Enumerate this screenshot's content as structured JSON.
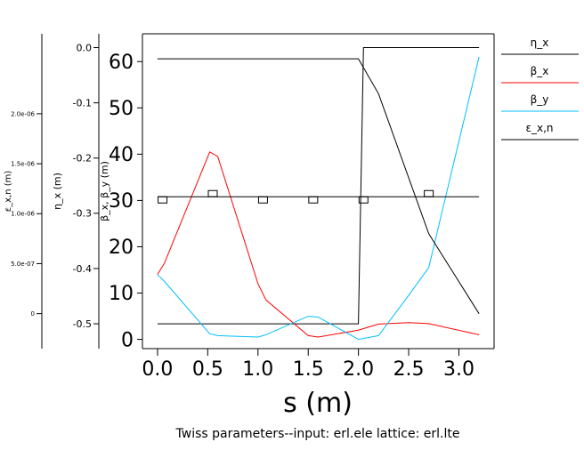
{
  "chart_data": {
    "type": "line",
    "title": "",
    "caption": "Twiss parameters--input: erl.ele  lattice: erl.lte",
    "xlabel": "s  (m)",
    "xlim": [
      -0.15,
      3.35
    ],
    "xticks": [
      "0.0",
      "0.5",
      "1.0",
      "1.5",
      "2.0",
      "2.5",
      "3.0"
    ],
    "xtick_values": [
      0.0,
      0.5,
      1.0,
      1.5,
      2.0,
      2.5,
      3.0
    ],
    "axes": {
      "beta": {
        "label": "β_x, β_y (m)",
        "ylim": [
          -2,
          66
        ],
        "ticks": [
          "0",
          "10",
          "20",
          "30",
          "40",
          "50",
          "60"
        ],
        "tick_values": [
          0,
          10,
          20,
          30,
          40,
          50,
          60
        ]
      },
      "eta": {
        "label": "η_x (m)",
        "ylim": [
          -0.545,
          0.025
        ],
        "ticks": [
          "0.0",
          "-0.1",
          "-0.2",
          "-0.3",
          "-0.4",
          "-0.5"
        ],
        "tick_values": [
          0.0,
          -0.1,
          -0.2,
          -0.3,
          -0.4,
          -0.5
        ]
      },
      "emittance": {
        "label": "ε_x,n (m)",
        "ylim": [
          -3.5e-07,
          2.8e-06
        ],
        "ticks": [
          "0",
          "5.0e-07",
          "1.0e-06",
          "1.5e-06",
          "2.0e-06"
        ],
        "tick_values": [
          0,
          5e-07,
          1e-06,
          1.5e-06,
          2e-06
        ]
      }
    },
    "legend": [
      "η_x",
      "β_x",
      "β_y",
      "ε_x,n"
    ],
    "legend_position": "right",
    "series": [
      {
        "name": "η_x",
        "axis": "eta",
        "color": "#000000",
        "x": [
          0.0,
          2.0,
          2.05,
          3.2
        ],
        "y": [
          -0.5,
          -0.5,
          0.0,
          0.0
        ]
      },
      {
        "name": "β_x",
        "axis": "beta",
        "color": "#ff0000",
        "x": [
          0.0,
          0.07,
          0.52,
          0.6,
          1.0,
          1.08,
          1.5,
          1.6,
          2.0,
          2.2,
          2.5,
          2.7,
          3.2
        ],
        "y": [
          14.0,
          16.5,
          40.5,
          39.5,
          12.0,
          8.5,
          0.8,
          0.5,
          2.0,
          3.3,
          3.6,
          3.4,
          1.0
        ]
      },
      {
        "name": "β_y",
        "axis": "beta",
        "color": "#00bfff",
        "x": [
          0.0,
          0.07,
          0.52,
          0.6,
          1.0,
          1.08,
          1.5,
          1.6,
          2.0,
          2.2,
          2.5,
          2.7,
          3.2
        ],
        "y": [
          14.0,
          12.5,
          1.2,
          0.8,
          0.5,
          1.0,
          5.0,
          4.8,
          0.0,
          0.8,
          9.5,
          15.5,
          61.0
        ]
      },
      {
        "name": "ε_x,n",
        "axis": "emittance",
        "color": "#000000",
        "x": [
          0.0,
          2.0,
          2.2,
          2.7,
          3.2
        ],
        "y": [
          2.55e-06,
          2.55e-06,
          2.2e-06,
          8e-07,
          0.0
        ]
      }
    ],
    "lattice_profile": {
      "color": "#000000",
      "baseline_beta": 30.8,
      "elements": [
        {
          "s": 0.05,
          "shape": "box"
        },
        {
          "s": 0.55,
          "shape": "box-up"
        },
        {
          "s": 1.05,
          "shape": "box"
        },
        {
          "s": 1.55,
          "shape": "box"
        },
        {
          "s": 2.05,
          "shape": "box"
        },
        {
          "s": 2.7,
          "shape": "box-up"
        }
      ]
    }
  }
}
